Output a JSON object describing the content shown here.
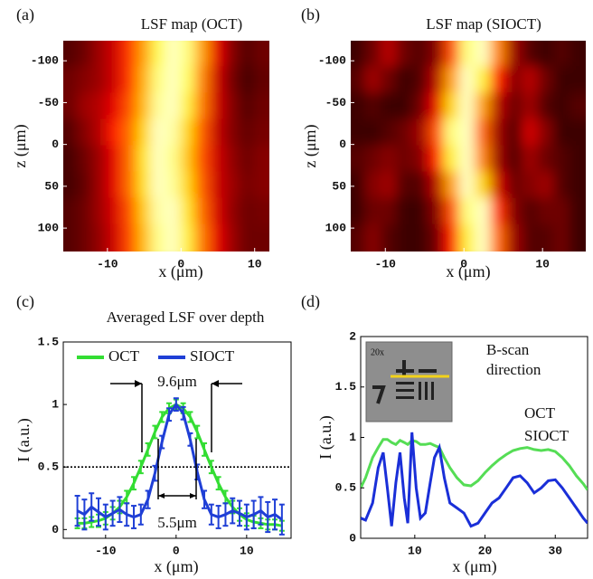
{
  "chart_data": [
    {
      "type": "heatmap",
      "panel_label": "(a)",
      "title": "LSF map (OCT)",
      "xlabel": "x (μm)",
      "ylabel": "z (μm)",
      "colormap": "hot",
      "x": [
        -15,
        -13,
        -11,
        -9,
        -7,
        -5,
        -3,
        -1,
        1,
        3,
        5,
        7,
        9,
        11
      ],
      "z": [
        -108.25,
        -76.75,
        -45.25,
        -13.75,
        17.75,
        49.25,
        80.75,
        112.25
      ],
      "values": [
        [
          0.15,
          0.2,
          0.3,
          0.4,
          0.55,
          0.75,
          0.92,
          1,
          0.95,
          0.75,
          0.45,
          0.25,
          0.15,
          0.2
        ],
        [
          0.2,
          0.25,
          0.3,
          0.4,
          0.55,
          0.78,
          0.95,
          1,
          0.93,
          0.7,
          0.4,
          0.22,
          0.12,
          0.18
        ],
        [
          0.2,
          0.3,
          0.35,
          0.45,
          0.6,
          0.8,
          0.97,
          1,
          0.9,
          0.68,
          0.4,
          0.25,
          0.15,
          0.2
        ],
        [
          0.15,
          0.25,
          0.35,
          0.5,
          0.65,
          0.85,
          1,
          0.98,
          0.85,
          0.62,
          0.38,
          0.25,
          0.18,
          0.22
        ],
        [
          0.12,
          0.2,
          0.3,
          0.45,
          0.65,
          0.88,
          1,
          0.96,
          0.82,
          0.6,
          0.4,
          0.28,
          0.2,
          0.25
        ],
        [
          0.12,
          0.18,
          0.3,
          0.45,
          0.65,
          0.87,
          1,
          0.97,
          0.85,
          0.62,
          0.4,
          0.3,
          0.22,
          0.25
        ],
        [
          0.15,
          0.2,
          0.3,
          0.42,
          0.6,
          0.83,
          0.98,
          1,
          0.88,
          0.65,
          0.42,
          0.28,
          0.2,
          0.22
        ],
        [
          0.15,
          0.2,
          0.28,
          0.4,
          0.58,
          0.8,
          0.96,
          1,
          0.9,
          0.68,
          0.45,
          0.3,
          0.2,
          0.2
        ]
      ],
      "xlim": [
        -16,
        12
      ],
      "ylim": [
        -124,
        128
      ],
      "yreverse": true,
      "xticks": [
        -10,
        0,
        10
      ],
      "yticks": [
        -100,
        -50,
        0,
        50,
        100
      ]
    },
    {
      "type": "heatmap",
      "panel_label": "(b)",
      "title": "LSF map (SIOCT)",
      "xlabel": "x (μm)",
      "ylabel": "z (μm)",
      "colormap": "hot",
      "x": [
        -13.5,
        -11.5,
        -9.5,
        -7.5,
        -5.5,
        -3.5,
        -1.5,
        0.5,
        2.5,
        4.5,
        6.5,
        8.5,
        10.5,
        12.5,
        14.5
      ],
      "z": [
        -108.25,
        -76.75,
        -45.25,
        -13.75,
        17.75,
        49.25,
        80.75,
        112.25
      ],
      "values": [
        [
          0.1,
          0.2,
          0.35,
          0.2,
          0.15,
          0.25,
          0.6,
          0.95,
          1,
          0.7,
          0.3,
          0.15,
          0.1,
          0.15,
          0.1
        ],
        [
          0.15,
          0.3,
          0.2,
          0.1,
          0.15,
          0.35,
          0.75,
          1,
          0.9,
          0.5,
          0.25,
          0.35,
          0.2,
          0.1,
          0.1
        ],
        [
          0.1,
          0.15,
          0.1,
          0.1,
          0.2,
          0.45,
          0.85,
          1,
          0.75,
          0.35,
          0.2,
          0.3,
          0.15,
          0.1,
          0.15
        ],
        [
          0.1,
          0.1,
          0.15,
          0.2,
          0.3,
          0.6,
          0.95,
          1,
          0.65,
          0.3,
          0.15,
          0.4,
          0.25,
          0.1,
          0.1
        ],
        [
          0.15,
          0.2,
          0.25,
          0.2,
          0.25,
          0.5,
          0.9,
          1,
          0.7,
          0.3,
          0.15,
          0.3,
          0.2,
          0.15,
          0.1
        ],
        [
          0.1,
          0.25,
          0.3,
          0.15,
          0.15,
          0.35,
          0.75,
          1,
          0.85,
          0.4,
          0.2,
          0.25,
          0.3,
          0.15,
          0.1
        ],
        [
          0.1,
          0.2,
          0.2,
          0.1,
          0.1,
          0.25,
          0.6,
          0.95,
          1,
          0.55,
          0.25,
          0.15,
          0.2,
          0.2,
          0.1
        ],
        [
          0.15,
          0.25,
          0.15,
          0.1,
          0.1,
          0.2,
          0.5,
          0.9,
          1,
          0.65,
          0.3,
          0.15,
          0.15,
          0.2,
          0.1
        ]
      ],
      "xlim": [
        -14.4,
        15.5
      ],
      "ylim": [
        -124,
        128
      ],
      "yreverse": true,
      "xticks": [
        -10,
        0,
        10
      ],
      "yticks": [
        -100,
        -50,
        0,
        50,
        100
      ]
    },
    {
      "type": "line",
      "panel_label": "(c)",
      "title": "Averaged LSF over depth",
      "xlabel": "x (μm)",
      "ylabel": "I (a.u.)",
      "x": [
        -14,
        -13,
        -12,
        -11,
        -10,
        -9,
        -8,
        -7,
        -6,
        -5,
        -4,
        -3,
        -2,
        -1,
        0,
        1,
        2,
        3,
        4,
        5,
        6,
        7,
        8,
        9,
        10,
        11,
        12,
        13,
        14,
        15
      ],
      "series": [
        {
          "name": "OCT",
          "color": "#33dd33",
          "values": [
            0.05,
            0.05,
            0.06,
            0.07,
            0.09,
            0.13,
            0.18,
            0.26,
            0.37,
            0.5,
            0.64,
            0.78,
            0.9,
            0.97,
            1,
            0.97,
            0.9,
            0.78,
            0.64,
            0.5,
            0.37,
            0.26,
            0.18,
            0.12,
            0.08,
            0.06,
            0.05,
            0.04,
            0.04,
            0.03
          ],
          "errors": [
            0.04,
            0.04,
            0.04,
            0.05,
            0.05,
            0.05,
            0.05,
            0.05,
            0.05,
            0.05,
            0.05,
            0.05,
            0.04,
            0.04,
            0.04,
            0.04,
            0.04,
            0.05,
            0.05,
            0.05,
            0.05,
            0.05,
            0.05,
            0.05,
            0.05,
            0.05,
            0.04,
            0.04,
            0.04,
            0.04
          ]
        },
        {
          "name": "SIOCT",
          "color": "#1f3fd6",
          "values": [
            0.15,
            0.12,
            0.18,
            0.14,
            0.1,
            0.13,
            0.16,
            0.12,
            0.1,
            0.12,
            0.24,
            0.45,
            0.7,
            0.92,
            1,
            0.93,
            0.72,
            0.46,
            0.24,
            0.12,
            0.1,
            0.12,
            0.15,
            0.13,
            0.1,
            0.12,
            0.15,
            0.1,
            0.12,
            0.08
          ],
          "errors": [
            0.12,
            0.12,
            0.11,
            0.11,
            0.1,
            0.1,
            0.1,
            0.09,
            0.09,
            0.08,
            0.07,
            0.06,
            0.05,
            0.05,
            0.05,
            0.05,
            0.05,
            0.06,
            0.07,
            0.08,
            0.09,
            0.09,
            0.1,
            0.1,
            0.1,
            0.11,
            0.11,
            0.12,
            0.12,
            0.12
          ]
        }
      ],
      "hline": 0.5,
      "annotations": [
        "9.6μm",
        "5.5μm"
      ],
      "legend": "top",
      "xlim": [
        -16,
        16.3
      ],
      "ylim": [
        -0.07,
        1.5
      ],
      "xticks": [
        -10,
        0,
        10
      ],
      "yticks": [
        0,
        0.5,
        1,
        1.5
      ]
    },
    {
      "type": "line",
      "panel_label": "(d)",
      "xlabel": "x (μm)",
      "ylabel": "I (a.u.)",
      "x": [
        2.3,
        3,
        4,
        4.8,
        5.5,
        6.1,
        6.7,
        7.3,
        7.9,
        8.5,
        9,
        9.6,
        10.2,
        10.8,
        11.5,
        12.2,
        12.8,
        13.5,
        14.2,
        15,
        16,
        17,
        18,
        19,
        20,
        21,
        22,
        23,
        24,
        25,
        26,
        27,
        28,
        29,
        30,
        31,
        32,
        33,
        34,
        34.6
      ],
      "series": [
        {
          "name": "OCT",
          "color": "#55dd55",
          "values": [
            0.5,
            0.6,
            0.8,
            0.9,
            0.98,
            0.98,
            0.95,
            0.93,
            0.97,
            0.95,
            0.93,
            0.97,
            0.96,
            0.93,
            0.93,
            0.94,
            0.92,
            0.9,
            0.8,
            0.7,
            0.6,
            0.53,
            0.52,
            0.57,
            0.65,
            0.72,
            0.78,
            0.83,
            0.87,
            0.89,
            0.9,
            0.88,
            0.87,
            0.88,
            0.86,
            0.8,
            0.72,
            0.62,
            0.54,
            0.48
          ]
        },
        {
          "name": "SIOCT",
          "color": "#1a2fd8",
          "values": [
            0.2,
            0.18,
            0.35,
            0.7,
            0.85,
            0.5,
            0.12,
            0.55,
            0.85,
            0.4,
            0.15,
            1.05,
            0.5,
            0.2,
            0.25,
            0.55,
            0.8,
            0.9,
            0.6,
            0.35,
            0.3,
            0.25,
            0.12,
            0.15,
            0.25,
            0.35,
            0.4,
            0.5,
            0.6,
            0.62,
            0.55,
            0.45,
            0.5,
            0.57,
            0.58,
            0.5,
            0.4,
            0.3,
            0.2,
            0.15
          ]
        }
      ],
      "annotations": [
        "B-scan",
        "direction"
      ],
      "inset_label": "20x",
      "legend": "right",
      "xlim": [
        2.3,
        34.6
      ],
      "ylim": [
        0,
        2
      ],
      "xticks": [
        10,
        20,
        30
      ],
      "yticks": [
        0,
        0.5,
        1,
        1.5,
        2
      ]
    }
  ]
}
